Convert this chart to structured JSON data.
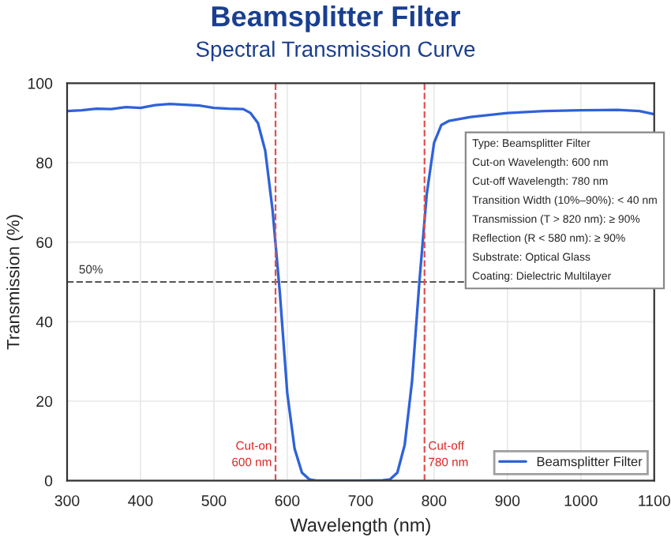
{
  "chart_data": {
    "type": "line",
    "title": "Beamsplitter Filter",
    "subtitle": "Spectral Transmission Curve",
    "xlabel": "Wavelength (nm)",
    "ylabel": "Transmission (%)",
    "x": [
      300,
      320,
      340,
      360,
      380,
      400,
      420,
      440,
      460,
      480,
      500,
      520,
      540,
      550,
      560,
      570,
      580,
      590,
      600,
      610,
      620,
      630,
      640,
      700,
      730,
      740,
      750,
      760,
      770,
      780,
      790,
      800,
      810,
      820,
      850,
      900,
      950,
      1000,
      1050,
      1080,
      1100
    ],
    "series": [
      {
        "name": "Beamsplitter Filter",
        "color": "#2f62d8",
        "values": [
          93,
          93.2,
          93.6,
          93.5,
          94,
          93.8,
          94.5,
          94.8,
          94.6,
          94.4,
          93.8,
          93.6,
          93.5,
          92.5,
          90,
          83,
          68,
          47,
          22,
          8,
          2,
          0.3,
          0,
          0,
          0.1,
          0.3,
          2,
          9,
          25,
          50,
          72,
          85,
          89.5,
          90.5,
          91.5,
          92.5,
          93,
          93.2,
          93.3,
          93,
          92.2
        ]
      }
    ],
    "xlim": [
      300,
      1100
    ],
    "xticks": [
      300,
      400,
      500,
      600,
      700,
      800,
      900,
      1000,
      1100
    ],
    "ylim": [
      0,
      100
    ],
    "yticks": [
      0,
      20,
      40,
      60,
      80,
      100
    ],
    "grid": true,
    "legend": "bottom right",
    "marker": "none",
    "line_style": "solid",
    "ref_lines": [
      {
        "axis": "y",
        "value": 50,
        "label": "50%",
        "color": "#555555",
        "line_style": "dashed"
      },
      {
        "axis": "x",
        "value": 584,
        "label": "Cut-on\n600 nm",
        "color": "#e05050",
        "line_style": "dashed"
      },
      {
        "axis": "x",
        "value": 787,
        "label": "Cut-off\n780 nm",
        "color": "#e05050",
        "line_style": "dashed"
      }
    ],
    "annotations": [
      "Type: Beamsplitter Filter\nCut-on Wavelength: 600 nm\nCut-off Wavelength: 780 nm\nTransition Width (10%–90%): < 40 nm\nTransmission (T > 820 nm): ≥ 90%\nReflection (R < 580 nm): ≥ 90%\nSubstrate: Optical Glass\nCoating: Dielectric Multilayer"
    ]
  }
}
